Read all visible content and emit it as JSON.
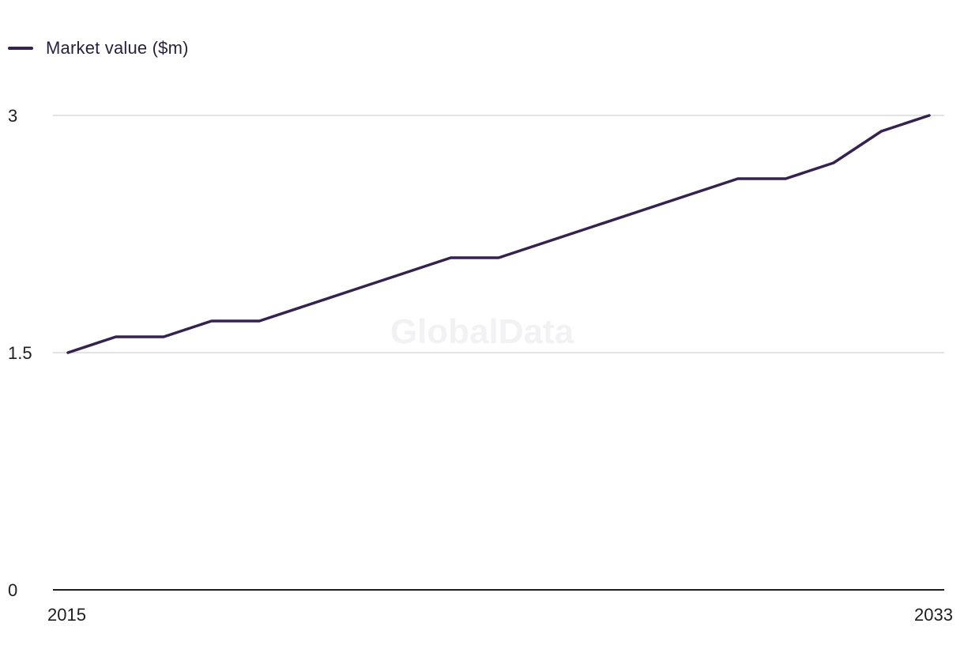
{
  "chart_data": {
    "type": "line",
    "title": "",
    "xlabel": "",
    "ylabel": "",
    "x": [
      2015,
      2016,
      2017,
      2018,
      2019,
      2020,
      2021,
      2022,
      2023,
      2024,
      2025,
      2026,
      2027,
      2028,
      2029,
      2030,
      2031,
      2032,
      2033
    ],
    "series": [
      {
        "name": "Market value ($m)",
        "color": "#35224f",
        "values": [
          1.5,
          1.6,
          1.6,
          1.7,
          1.7,
          1.8,
          1.9,
          2.0,
          2.1,
          2.1,
          2.2,
          2.3,
          2.4,
          2.5,
          2.6,
          2.6,
          2.7,
          2.9,
          3.0
        ]
      }
    ],
    "ylim": [
      0,
      3
    ],
    "yticks": [
      "0",
      "1.5",
      "3"
    ],
    "xticks": [
      "2015",
      "2033"
    ],
    "grid": true,
    "legend": "top-left"
  },
  "watermark": "GlobalData",
  "colors": {
    "line": "#35224f",
    "grid": "#d9d9de",
    "axis": "#1e1e1e"
  }
}
